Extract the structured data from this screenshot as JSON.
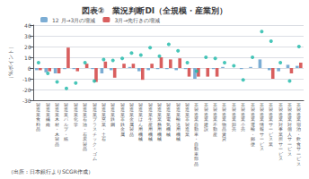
{
  "chart_data": {
    "type": "bar",
    "title": "図表②　業況判断DI（全規模・産業別）",
    "ylabel": "（%ポイント）",
    "annotations": [
      "（出所：日本銀行よりSCGR作成）"
    ],
    "categories": [
      "製\n造\n業\n食\n料\n品",
      "製\n造\n業\n繊\n維",
      "製\n造\n業\n木\n材\n・\n木\n製\n品",
      "製\n造\n業\nパ\nル\nプ\n・\n紙",
      "製\n造\n業\n化\n学",
      "製\n造\n業\n石\n油\n・\n石\n炭\n製\n品",
      "製\n造\n業\nプ\nラ\nス\nチ\nッ\nク\n・\nゴ\nム",
      "製\n造\n業\n窯\n業\n・\n土\n石",
      "製\n造\n業\n鉄\n鋼",
      "製\n造\n業\n非\n鉄\n金\n属",
      "製\n造\n業\n金\n属\n製\n品",
      "製\n造\n業\nは\nん\n用\n機\n械",
      "製\n造\n業\n生\n産\n用\n機\n械",
      "製\n造\n業\n業\n務\n用\n機\n械",
      "製\n造\n業\n電\n気\n機\n械",
      "製\n造\n業\n輸\n送\n用\n機\n械",
      "製\n造\n業\n非\n製\n造\n業",
      "非\n製\n造\n業\n自\n動\n車\n・\n自\n動\n車\n部\n品",
      "非\n製\n造\n業\n建\n設",
      "非\n製\n造\n業\n不\n動\n産",
      "非\n製\n造\n業\n物\n品\n賃\n貸",
      "非\n製\n造\n業\n卸\n売",
      "非\n製\n造\n業\n小\n売",
      "非\n製\n造\n業\n運\n輸\n・\n郵\n便",
      "非\n製\n造\n業\n情\n報\nサ\nー\nビ\nス",
      "非\n製\n造\n業\nサ\nー\nビ\nス\n業",
      "非\n製\n造\n業\n対\n事\n業\n所\nサ\nー\nビ\nス",
      "非\n製\n造\n業\n対\n個\n人\nサ\nー\nビ\nス",
      "非\n製\n造\n業\n宿\n泊\n・\n飲\n食\nサ\nー\nビ\nス"
    ],
    "series": [
      {
        "name": "12 月→3月の増減",
        "type": "bar",
        "color": "#7cadd4",
        "values": [
          -2,
          -4,
          -5,
          -1,
          -1,
          0,
          -1,
          -5,
          -2,
          0,
          1,
          -3,
          -2,
          -1,
          -1,
          -2,
          -1,
          -10,
          0,
          -1,
          1,
          0,
          -1,
          1,
          8,
          -2,
          -3,
          3,
          2
        ]
      },
      {
        "name": "3月→先行きの増減",
        "type": "bar",
        "color": "#d95f5f",
        "values": [
          -2,
          -3,
          -5,
          19,
          -3,
          4,
          -13,
          6,
          -9,
          4,
          4,
          -11,
          4,
          10,
          8,
          9,
          -8,
          -8,
          -8,
          -8,
          0,
          0,
          0,
          0,
          0,
          -10,
          0,
          -5,
          5
        ]
      },
      {
        "type": "scatter",
        "marker": "circle",
        "color": "#1ab8a8",
        "values": [
          5,
          -5,
          -13,
          -19,
          -14,
          5,
          -12,
          8,
          7,
          9,
          14,
          12,
          19,
          11,
          22,
          16,
          5,
          -3,
          10,
          9,
          5,
          2,
          -11,
          10,
          34,
          25,
          5,
          -12,
          20
        ]
      }
    ],
    "ylim": [
      -30,
      40
    ],
    "yticks": [
      -30,
      -20,
      -10,
      0,
      10,
      20,
      30,
      40
    ],
    "grid": true,
    "legend": "upper left"
  }
}
